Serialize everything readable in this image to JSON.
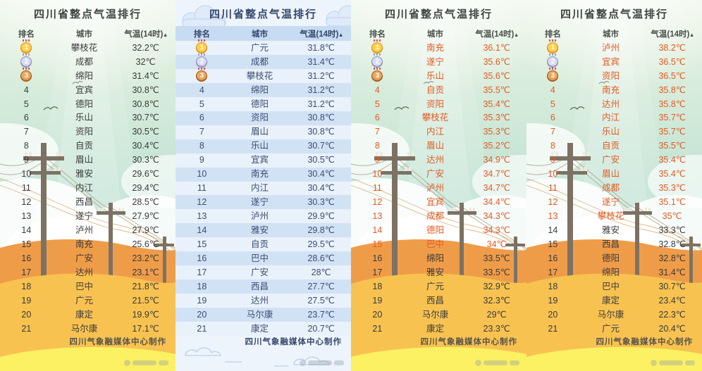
{
  "app": {
    "description_label": "四川省整点气温排行四联图"
  },
  "colors": {
    "hot_text": "#e25b24",
    "green_panel_text": "#3a3a3a",
    "blue_panel_text": "#3b4d70",
    "hill_dark_orange": "#ef9c49",
    "hill_gold": "#f8c251",
    "hill_yellow": "#fbf162",
    "medal_gold": "#ef9f1c",
    "medal_silver": "#9aa0c4",
    "medal_bronze": "#b56a24"
  },
  "panels": [
    {
      "theme": "green",
      "footer": "四川气象融媒体中心制作",
      "hot_rank_max": 0
    },
    {
      "theme": "blue",
      "footer": "四川气象融媒体中心制作",
      "hot_rank_max": 0
    },
    {
      "theme": "green",
      "footer": "四川气象融媒体中心制作",
      "hot_rank_max": 15
    },
    {
      "theme": "green",
      "footer": "四川气象融媒体中心制作",
      "hot_rank_max": 13
    }
  ],
  "columns": {
    "rank": "排名",
    "city": "城市",
    "temp": "气温(14时)",
    "sort_icon": "▴"
  },
  "chart_data": [
    {
      "type": "table",
      "title": "四川省整点气温排行",
      "columns": [
        "排名",
        "城市",
        "气温(14时)"
      ],
      "rows": [
        [
          1,
          "攀枝花",
          "32.2℃"
        ],
        [
          2,
          "成都",
          "32℃"
        ],
        [
          3,
          "绵阳",
          "31.4℃"
        ],
        [
          4,
          "宜宾",
          "30.8℃"
        ],
        [
          5,
          "德阳",
          "30.8℃"
        ],
        [
          6,
          "乐山",
          "30.7℃"
        ],
        [
          7,
          "资阳",
          "30.5℃"
        ],
        [
          8,
          "自贡",
          "30.4℃"
        ],
        [
          9,
          "眉山",
          "30.3℃"
        ],
        [
          10,
          "雅安",
          "29.6℃"
        ],
        [
          11,
          "内江",
          "29.4℃"
        ],
        [
          12,
          "西昌",
          "28.5℃"
        ],
        [
          13,
          "遂宁",
          "27.9℃"
        ],
        [
          14,
          "泸州",
          "27.9℃"
        ],
        [
          15,
          "南充",
          "25.6℃"
        ],
        [
          16,
          "广安",
          "23.2℃"
        ],
        [
          17,
          "达州",
          "23.1℃"
        ],
        [
          18,
          "巴中",
          "21.8℃"
        ],
        [
          19,
          "广元",
          "21.5℃"
        ],
        [
          20,
          "康定",
          "19.9℃"
        ],
        [
          21,
          "马尔康",
          "17.1℃"
        ]
      ]
    },
    {
      "type": "table",
      "title": "四川省整点气温排行",
      "columns": [
        "排名",
        "城市",
        "气温(14时)"
      ],
      "rows": [
        [
          1,
          "广元",
          "31.8℃"
        ],
        [
          2,
          "成都",
          "31.4℃"
        ],
        [
          3,
          "攀枝花",
          "31.2℃"
        ],
        [
          4,
          "绵阳",
          "31.2℃"
        ],
        [
          5,
          "德阳",
          "31.2℃"
        ],
        [
          6,
          "资阳",
          "30.8℃"
        ],
        [
          7,
          "眉山",
          "30.8℃"
        ],
        [
          8,
          "乐山",
          "30.7℃"
        ],
        [
          9,
          "宜宾",
          "30.5℃"
        ],
        [
          10,
          "南充",
          "30.4℃"
        ],
        [
          11,
          "内江",
          "30.4℃"
        ],
        [
          12,
          "遂宁",
          "30.3℃"
        ],
        [
          13,
          "泸州",
          "29.9℃"
        ],
        [
          14,
          "雅安",
          "29.8℃"
        ],
        [
          15,
          "自贡",
          "29.5℃"
        ],
        [
          16,
          "巴中",
          "28.6℃"
        ],
        [
          17,
          "广安",
          "28℃"
        ],
        [
          18,
          "西昌",
          "27.7℃"
        ],
        [
          19,
          "达州",
          "27.5℃"
        ],
        [
          20,
          "马尔康",
          "23.7℃"
        ],
        [
          21,
          "康定",
          "20.7℃"
        ]
      ]
    },
    {
      "type": "table",
      "title": "四川省整点气温排行",
      "columns": [
        "排名",
        "城市",
        "气温(14时)"
      ],
      "rows": [
        [
          1,
          "南充",
          "36.1℃"
        ],
        [
          2,
          "遂宁",
          "35.6℃"
        ],
        [
          3,
          "乐山",
          "35.6℃"
        ],
        [
          4,
          "自贡",
          "35.5℃"
        ],
        [
          5,
          "资阳",
          "35.4℃"
        ],
        [
          6,
          "攀枝花",
          "35.3℃"
        ],
        [
          7,
          "内江",
          "35.3℃"
        ],
        [
          8,
          "眉山",
          "35.2℃"
        ],
        [
          9,
          "达州",
          "34.9℃"
        ],
        [
          10,
          "广安",
          "34.7℃"
        ],
        [
          11,
          "泸州",
          "34.7℃"
        ],
        [
          12,
          "宜宾",
          "34.4℃"
        ],
        [
          13,
          "成都",
          "34.3℃"
        ],
        [
          14,
          "德阳",
          "34.3℃"
        ],
        [
          15,
          "巴中",
          "34℃"
        ],
        [
          16,
          "绵阳",
          "33.5℃"
        ],
        [
          17,
          "雅安",
          "33.5℃"
        ],
        [
          18,
          "广元",
          "32.9℃"
        ],
        [
          19,
          "西昌",
          "32.3℃"
        ],
        [
          20,
          "马尔康",
          "29℃"
        ],
        [
          21,
          "康定",
          "23.3℃"
        ]
      ]
    },
    {
      "type": "table",
      "title": "四川省整点气温排行",
      "columns": [
        "排名",
        "城市",
        "气温(14时)"
      ],
      "rows": [
        [
          1,
          "泸州",
          "38.2℃"
        ],
        [
          2,
          "宜宾",
          "36.5℃"
        ],
        [
          3,
          "资阳",
          "36.5℃"
        ],
        [
          4,
          "南充",
          "35.8℃"
        ],
        [
          5,
          "达州",
          "35.8℃"
        ],
        [
          6,
          "内江",
          "35.7℃"
        ],
        [
          7,
          "乐山",
          "35.7℃"
        ],
        [
          8,
          "自贡",
          "35.5℃"
        ],
        [
          9,
          "广安",
          "35.4℃"
        ],
        [
          10,
          "眉山",
          "35.4℃"
        ],
        [
          11,
          "成都",
          "35.3℃"
        ],
        [
          12,
          "遂宁",
          "35.1℃"
        ],
        [
          13,
          "攀枝花",
          "35℃"
        ],
        [
          14,
          "雅安",
          "33.3℃"
        ],
        [
          15,
          "西昌",
          "32.8℃"
        ],
        [
          16,
          "德阳",
          "32.8℃"
        ],
        [
          17,
          "绵阳",
          "31.4℃"
        ],
        [
          18,
          "巴中",
          "30.7℃"
        ],
        [
          19,
          "康定",
          "23.4℃"
        ],
        [
          20,
          "马尔康",
          "22.3℃"
        ],
        [
          21,
          "广元",
          "20.4℃"
        ]
      ]
    }
  ]
}
